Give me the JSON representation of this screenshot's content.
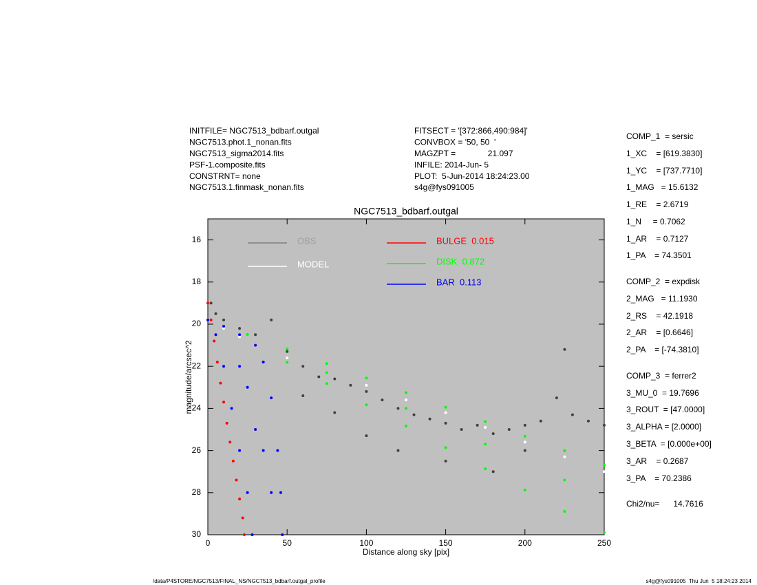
{
  "header": {
    "left": [
      "INITFILE= NGC7513_bdbarf.outgal",
      "NGC7513.phot.1_nonan.fits",
      "NGC7513_sigma2014.fits",
      "PSF-1.composite.fits",
      "CONSTRNT= none",
      "NGC7513.1.finmask_nonan.fits"
    ],
    "middle": [
      "FITSECT = '[372:866,490:984]'",
      "CONVBOX = '50, 50  '",
      "MAGZPT =              21.097",
      "INFILE: 2014-Jun- 5",
      "PLOT:  5-Jun-2014 18:24:23.00",
      "s4g@fys091005"
    ]
  },
  "side_panel": [
    "COMP_1  = sersic",
    "1_XC    = [619.3830]",
    "1_YC    = [737.7710]",
    "1_MAG   = 15.6132",
    "1_RE    = 2.6719",
    "1_N     = 0.7062",
    "1_AR    = 0.7127",
    "1_PA    = 74.3501",
    "COMP_2  = expdisk",
    "2_MAG   = 11.1930",
    "2_RS    = 42.1918",
    "2_AR    = [0.6646]",
    "2_PA    = [-74.3810]",
    "COMP_3  = ferrer2",
    "3_MU_0  = 19.7696",
    "3_ROUT  = [47.0000]",
    "3_ALPHA = [2.0000]",
    "3_BETA  = [0.000e+00]",
    "3_AR    = 0.2687",
    "3_PA    = 70.2386",
    "Chi2/nu=      14.7616"
  ],
  "footer": {
    "left": "/data/P4STORE/NGC7513/FINAL_NS/NGC7513_bdbarf.outgal_profile",
    "right": "s4g@fys091005  Thu Jun  5 18:24:23 2014"
  },
  "chart_data": {
    "type": "scatter",
    "title": "NGC7513_bdbarf.outgal",
    "x_label": "Distance along sky [pix]",
    "y_label": "magnitude/arcsec^2",
    "xlim": [
      0,
      250
    ],
    "ylim": [
      30,
      15
    ],
    "xticks": [
      0,
      50,
      100,
      150,
      200,
      250
    ],
    "yticks": [
      16,
      18,
      20,
      22,
      24,
      26,
      28,
      30
    ],
    "background": "#c0c0c0",
    "series": [
      {
        "name": "OBS",
        "color": "#404040",
        "x": [
          2,
          5,
          10,
          20,
          30,
          40,
          50,
          60,
          70,
          80,
          90,
          100,
          110,
          120,
          130,
          140,
          150,
          160,
          170,
          180,
          190,
          200,
          210,
          220,
          225,
          230,
          240,
          250,
          100,
          120,
          150,
          180,
          200,
          60,
          80
        ],
        "values": [
          19.0,
          19.5,
          19.8,
          20.2,
          20.5,
          19.8,
          21.3,
          22.0,
          22.5,
          22.6,
          22.9,
          23.2,
          23.6,
          24.0,
          24.3,
          24.5,
          24.7,
          25.0,
          24.8,
          25.2,
          25.0,
          24.8,
          24.6,
          23.5,
          21.2,
          24.3,
          24.6,
          24.8,
          25.3,
          26.0,
          26.5,
          27.0,
          26.0,
          23.4,
          24.2
        ]
      },
      {
        "name": "MODEL",
        "color": "#ffffff",
        "x": [
          0,
          10,
          20,
          30,
          50,
          75,
          100,
          125,
          150,
          175,
          200,
          225,
          250
        ],
        "values": [
          19.8,
          20.2,
          20.6,
          21.0,
          21.6,
          22.3,
          22.9,
          23.6,
          24.2,
          24.9,
          25.6,
          26.3,
          27.0
        ]
      },
      {
        "name": "BULGE  0.015",
        "color": "#ff0000",
        "x": [
          0,
          2,
          4,
          6,
          8,
          10,
          12,
          14,
          16,
          18,
          20,
          22,
          23
        ],
        "values": [
          19.0,
          19.8,
          20.8,
          21.8,
          22.8,
          23.7,
          24.7,
          25.6,
          26.5,
          27.4,
          28.3,
          29.2,
          30.0
        ]
      },
      {
        "name": "DISK  0.872",
        "color": "#00ff00",
        "x": [
          0,
          25,
          50,
          75,
          100,
          125,
          150,
          175,
          200,
          225,
          250,
          50,
          75,
          100,
          125,
          150,
          175,
          200,
          225,
          250,
          75,
          125,
          175,
          225
        ],
        "values": [
          19.8,
          20.49,
          21.18,
          21.87,
          22.56,
          23.25,
          23.94,
          24.63,
          25.32,
          26.01,
          26.7,
          21.81,
          22.82,
          23.83,
          24.84,
          25.86,
          26.87,
          27.88,
          28.89,
          29.9,
          22.3,
          24.0,
          25.7,
          27.4
        ]
      },
      {
        "name": "BAR  0.113",
        "color": "#0000ff",
        "x": [
          0,
          10,
          20,
          30,
          35,
          40,
          44,
          46,
          47,
          5,
          10,
          15,
          20,
          25,
          28,
          30,
          35,
          40,
          20,
          25
        ],
        "values": [
          19.8,
          20.1,
          20.5,
          21.0,
          21.8,
          23.5,
          26.0,
          28.0,
          30.0,
          20.5,
          22.0,
          24.0,
          26.0,
          28.0,
          30.0,
          25.0,
          26.0,
          28.0,
          22.0,
          23.0
        ]
      }
    ]
  }
}
